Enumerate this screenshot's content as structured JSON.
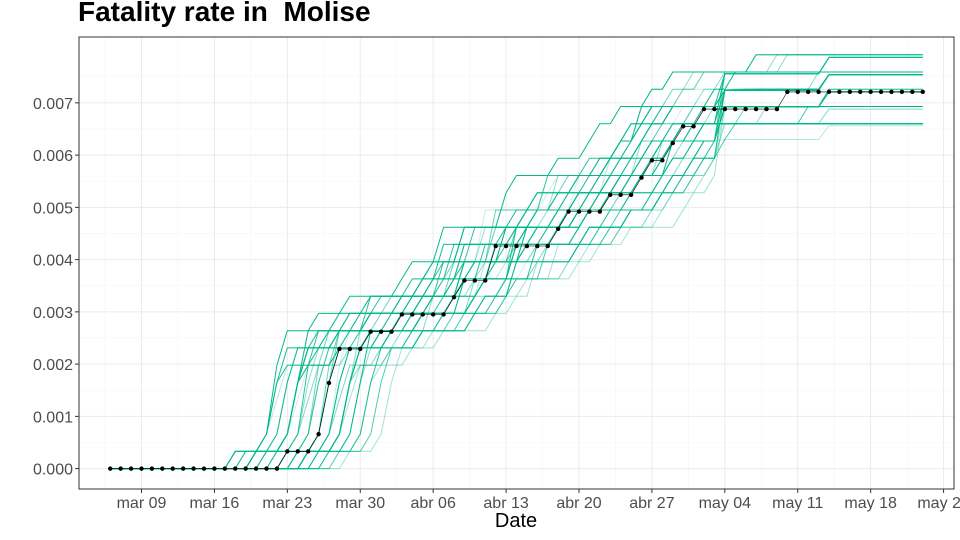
{
  "chart_data": {
    "type": "line",
    "title": "Fatality rate in  Molise",
    "xlabel": "Date",
    "ylabel": "",
    "grid": true,
    "legend": "none",
    "colors": {
      "sims": "#00b88a",
      "observed": "#000000",
      "grid_major": "#ebebeb",
      "grid_minor": "#f5f5f5",
      "panel_border": "#333333",
      "axis_text": "#4d4d4d"
    },
    "x_axis": {
      "type": "date",
      "range": [
        "2020-03-03",
        "2020-05-26"
      ],
      "ticks": [
        "2020-03-09",
        "2020-03-16",
        "2020-03-23",
        "2020-03-30",
        "2020-04-06",
        "2020-04-13",
        "2020-04-20",
        "2020-04-27",
        "2020-05-04",
        "2020-05-11",
        "2020-05-18",
        "2020-05-25"
      ],
      "tick_labels": [
        "mar 09",
        "mar 16",
        "mar 23",
        "mar 30",
        "abr 06",
        "abr 13",
        "abr 20",
        "abr 27",
        "may 04",
        "may 11",
        "may 18",
        "may 25"
      ]
    },
    "y_axis": {
      "range": [
        -0.00039,
        0.00826
      ],
      "ticks": [
        0.0,
        0.001,
        0.002,
        0.003,
        0.004,
        0.005,
        0.006,
        0.007
      ],
      "tick_labels": [
        "0.000",
        "0.001",
        "0.002",
        "0.003",
        "0.004",
        "0.005",
        "0.006",
        "0.007"
      ]
    },
    "series": [
      {
        "role": "observed",
        "start_date": "2020-03-06",
        "values": [
          0,
          0,
          0,
          0,
          0,
          0,
          0,
          0,
          0,
          0,
          0,
          0,
          0,
          0,
          0,
          0,
          0,
          0.00033,
          0.00033,
          0.00033,
          0.00066,
          0.00164,
          0.00229,
          0.00229,
          0.00229,
          0.00262,
          0.00262,
          0.00262,
          0.00295,
          0.00295,
          0.00295,
          0.00295,
          0.00295,
          0.00328,
          0.0036,
          0.0036,
          0.0036,
          0.00426,
          0.00426,
          0.00426,
          0.00426,
          0.00426,
          0.00426,
          0.00459,
          0.00492,
          0.00492,
          0.00492,
          0.00492,
          0.00524,
          0.00524,
          0.00524,
          0.00557,
          0.0059,
          0.0059,
          0.00623,
          0.00655,
          0.00655,
          0.00688,
          0.00688,
          0.00688,
          0.00688,
          0.00688,
          0.00688,
          0.00688,
          0.00688,
          0.00721,
          0.00721,
          0.00721,
          0.00721,
          0.00721,
          0.00721,
          0.00721,
          0.00721,
          0.00721,
          0.00721,
          0.00721,
          0.00721,
          0.00721,
          0.00721
        ]
      }
    ],
    "simulation_ensemble": {
      "description_source": "bundle of green step-line trajectories around the observed series",
      "plateau_levels": [
        0.00656,
        0.00688,
        0.00721,
        0.00754,
        0.00787
      ],
      "count": 48
    }
  }
}
